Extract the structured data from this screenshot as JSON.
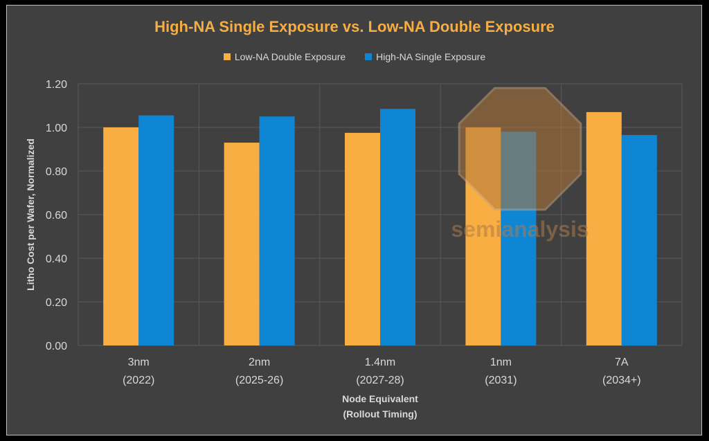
{
  "chart_data": {
    "type": "bar",
    "title": "High-NA Single Exposure vs. Low-NA Double Exposure",
    "categories": [
      [
        "3nm",
        "(2022)"
      ],
      [
        "2nm",
        "(2025-26)"
      ],
      [
        "1.4nm",
        "(2027-28)"
      ],
      [
        "1nm",
        "(2031)"
      ],
      [
        "7A",
        "(2034+)"
      ]
    ],
    "series": [
      {
        "name": "Low-NA Double Exposure",
        "color": "#f9ae43",
        "values": [
          1.0,
          0.93,
          0.975,
          1.0,
          1.07
        ]
      },
      {
        "name": "High-NA Single Exposure",
        "color": "#0e86d4",
        "values": [
          1.055,
          1.05,
          1.085,
          0.98,
          0.965
        ]
      }
    ],
    "xlabel": [
      "Node Equivalent",
      "(Rollout Timing)"
    ],
    "ylabel": "Litho Cost per Wafer, Normalized",
    "ylim": [
      0,
      1.2
    ],
    "yticks": [
      "0.00",
      "0.20",
      "0.40",
      "0.60",
      "0.80",
      "1.00",
      "1.20"
    ],
    "grid": true,
    "legend_position": "top",
    "watermark": "semianalysis"
  }
}
